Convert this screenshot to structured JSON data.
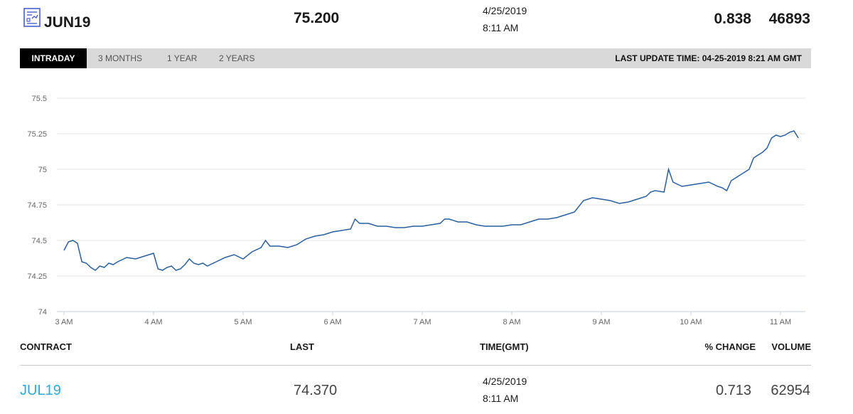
{
  "header": {
    "icon": "contract-sheet-icon",
    "contract": "JUN19",
    "last": "75.200",
    "date": "4/25/2019",
    "time": "8:11 AM",
    "pct_change": "0.838",
    "volume": "46893"
  },
  "tabs": [
    {
      "label": "INTRADAY",
      "active": true
    },
    {
      "label": "3 MONTHS",
      "active": false
    },
    {
      "label": "1 YEAR",
      "active": false
    },
    {
      "label": "2 YEARS",
      "active": false
    }
  ],
  "last_update": "LAST UPDATE TIME: 04-25-2019 8:21 AM GMT",
  "chart_data": {
    "type": "line",
    "title": "",
    "xlabel": "",
    "ylabel": "",
    "line_color": "#2a5f9e",
    "grid": true,
    "x_ticks": [
      "3 AM",
      "4 AM",
      "5 AM",
      "6 AM",
      "7 AM",
      "8 AM",
      "9 AM",
      "10 AM",
      "11 AM"
    ],
    "y_ticks": [
      "74",
      "74.25",
      "74.5",
      "74.75",
      "75",
      "75.25",
      "75.5"
    ],
    "xlim": [
      3.0,
      11.35
    ],
    "ylim": [
      74,
      75.5
    ],
    "series": [
      {
        "x": [
          3.0,
          3.05,
          3.1,
          3.15,
          3.2,
          3.25,
          3.3,
          3.35,
          3.4,
          3.45,
          3.5,
          3.55,
          3.6,
          3.7,
          3.8,
          3.9,
          4.0,
          4.05,
          4.1,
          4.15,
          4.2,
          4.25,
          4.3,
          4.35,
          4.4,
          4.45,
          4.5,
          4.55,
          4.6,
          4.7,
          4.8,
          4.9,
          5.0,
          5.1,
          5.2,
          5.25,
          5.3,
          5.4,
          5.5,
          5.6,
          5.7,
          5.8,
          5.9,
          6.0,
          6.1,
          6.2,
          6.25,
          6.3,
          6.4,
          6.5,
          6.6,
          6.7,
          6.8,
          6.9,
          7.0,
          7.1,
          7.2,
          7.25,
          7.3,
          7.4,
          7.5,
          7.6,
          7.7,
          7.8,
          7.9,
          8.0,
          8.1,
          8.2,
          8.3,
          8.4,
          8.5,
          8.6,
          8.7,
          8.8,
          8.9,
          9.0,
          9.1,
          9.2,
          9.3,
          9.4,
          9.5,
          9.55,
          9.6,
          9.7,
          9.75,
          9.8,
          9.9,
          10.0,
          10.1,
          10.2,
          10.3,
          10.35,
          10.4,
          10.45,
          10.5,
          10.55,
          10.6,
          10.65,
          10.7,
          10.75,
          10.8,
          10.85,
          10.9,
          10.95,
          11.0,
          11.05,
          11.1,
          11.15,
          11.2
        ],
        "y": [
          74.43,
          74.49,
          74.5,
          74.48,
          74.35,
          74.34,
          74.31,
          74.29,
          74.32,
          74.31,
          74.34,
          74.33,
          74.35,
          74.38,
          74.37,
          74.39,
          74.41,
          74.3,
          74.29,
          74.31,
          74.32,
          74.29,
          74.3,
          74.33,
          74.37,
          74.34,
          74.33,
          74.34,
          74.32,
          74.35,
          74.38,
          74.4,
          74.37,
          74.42,
          74.45,
          74.5,
          74.46,
          74.46,
          74.45,
          74.47,
          74.51,
          74.53,
          74.54,
          74.56,
          74.57,
          74.58,
          74.65,
          74.62,
          74.62,
          74.6,
          74.6,
          74.59,
          74.59,
          74.6,
          74.6,
          74.61,
          74.62,
          74.65,
          74.65,
          74.63,
          74.63,
          74.61,
          74.6,
          74.6,
          74.6,
          74.61,
          74.61,
          74.63,
          74.65,
          74.65,
          74.66,
          74.68,
          74.7,
          74.78,
          74.8,
          74.79,
          74.78,
          74.76,
          74.77,
          74.79,
          74.81,
          74.84,
          74.85,
          74.84,
          75.0,
          74.91,
          74.88,
          74.89,
          74.9,
          74.91,
          74.88,
          74.87,
          74.85,
          74.92,
          74.94,
          74.96,
          74.98,
          75.0,
          75.08,
          75.1,
          75.12,
          75.15,
          75.22,
          75.24,
          75.23,
          75.24,
          75.26,
          75.27,
          75.22
        ]
      }
    ]
  },
  "table": {
    "headers": [
      "CONTRACT",
      "LAST",
      "TIME(GMT)",
      "% CHANGE",
      "VOLUME"
    ],
    "rows": [
      {
        "contract": "JUL19",
        "last": "74.370",
        "date": "4/25/2019",
        "time": "8:11 AM",
        "pct_change": "0.713",
        "volume": "62954"
      }
    ]
  }
}
